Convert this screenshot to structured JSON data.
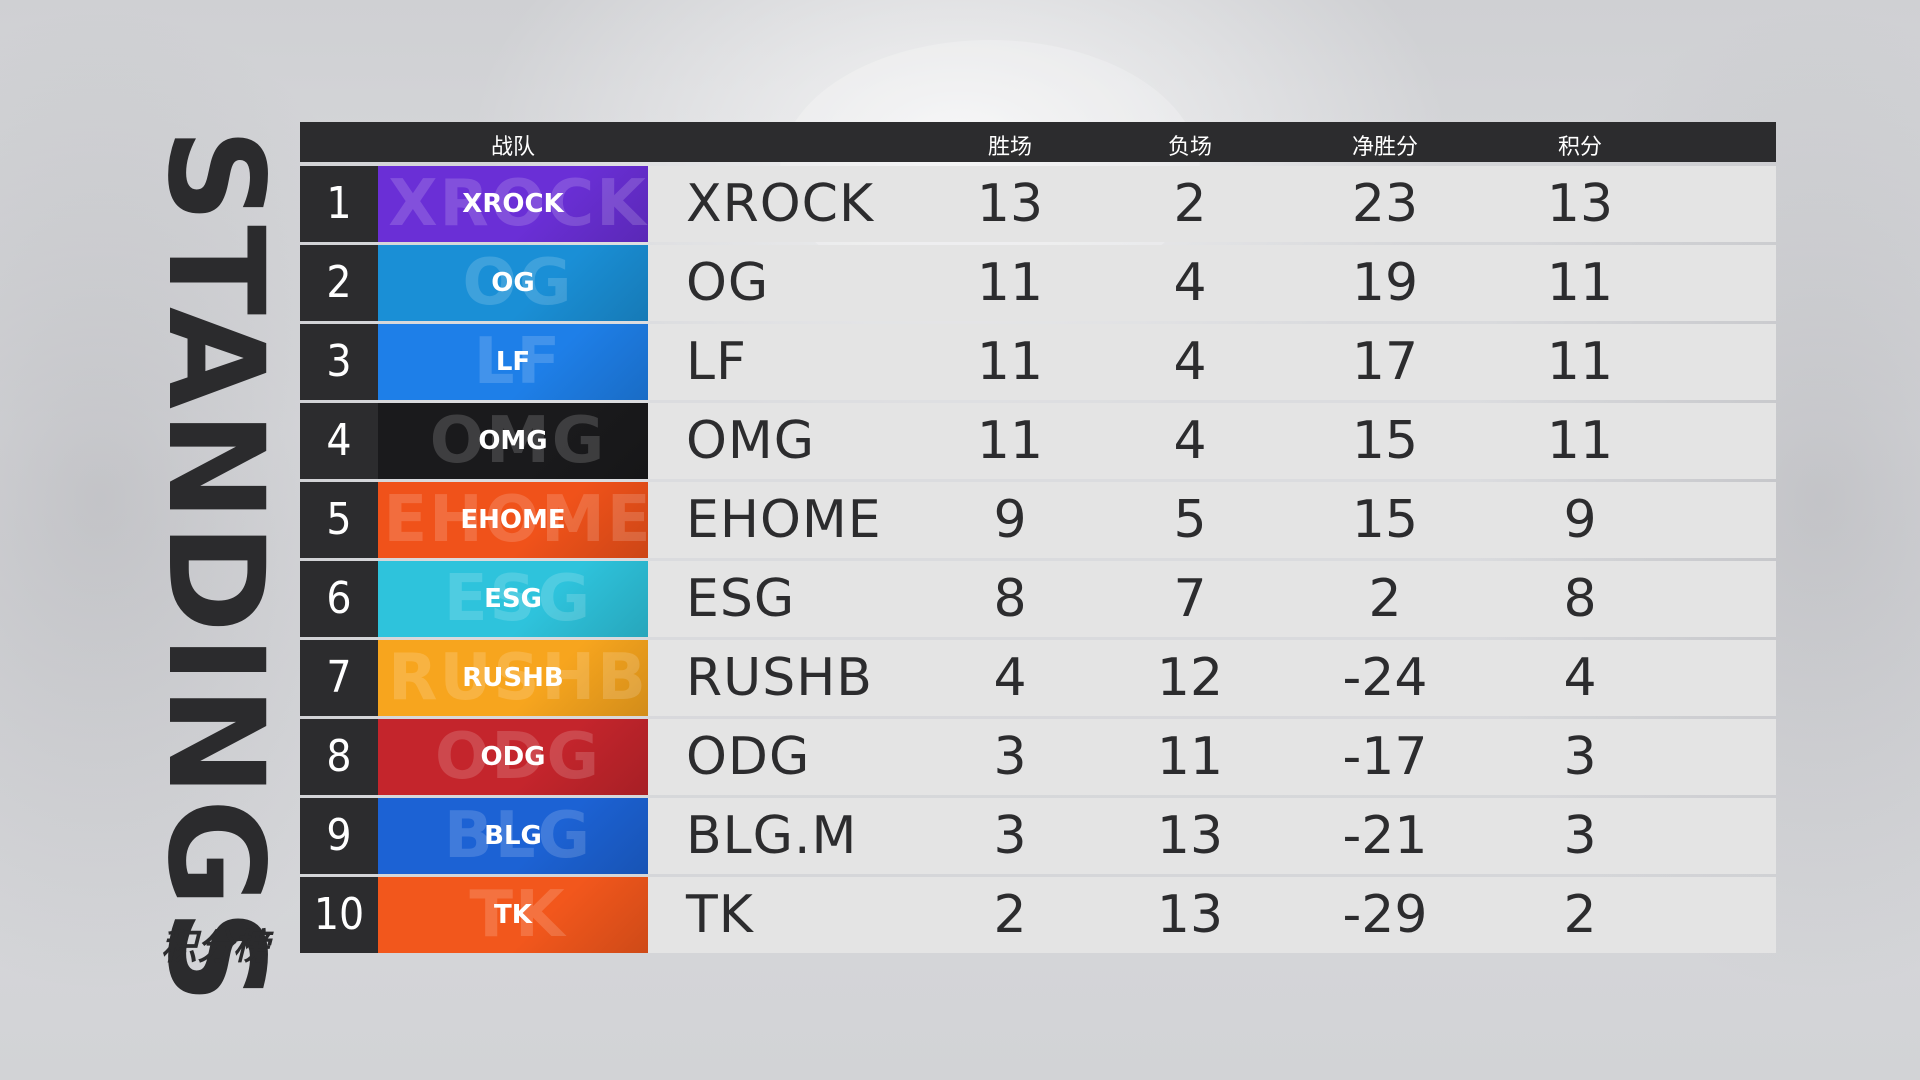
{
  "title": {
    "en": "STANDINGS",
    "cn": "积分榜"
  },
  "headers": {
    "team": "战队",
    "wins": "胜场",
    "losses": "负场",
    "diff": "净胜分",
    "points": "积分"
  },
  "rows": [
    {
      "rank": "1",
      "team": "XROCK",
      "logo_text": "XROCK",
      "color": "#6a2fd6",
      "wins": "13",
      "losses": "2",
      "diff": "23",
      "points": "13"
    },
    {
      "rank": "2",
      "team": "OG",
      "logo_text": "OG",
      "color": "#1a8fd6",
      "wins": "11",
      "losses": "4",
      "diff": "19",
      "points": "11"
    },
    {
      "rank": "3",
      "team": "LF",
      "logo_text": "LF",
      "color": "#1e7fe8",
      "wins": "11",
      "losses": "4",
      "diff": "17",
      "points": "11"
    },
    {
      "rank": "4",
      "team": "OMG",
      "logo_text": "OMG",
      "color": "#1a1a1c",
      "wins": "11",
      "losses": "4",
      "diff": "15",
      "points": "11"
    },
    {
      "rank": "5",
      "team": "EHOME",
      "logo_text": "EHOME",
      "color": "#f0521a",
      "wins": "9",
      "losses": "5",
      "diff": "15",
      "points": "9"
    },
    {
      "rank": "6",
      "team": "ESG",
      "logo_text": "ESG",
      "color": "#2ec3dc",
      "wins": "8",
      "losses": "7",
      "diff": "2",
      "points": "8"
    },
    {
      "rank": "7",
      "team": "RUSHB",
      "logo_text": "RUSHB",
      "color": "#f7a51e",
      "wins": "4",
      "losses": "12",
      "diff": "-24",
      "points": "4"
    },
    {
      "rank": "8",
      "team": "ODG",
      "logo_text": "ODG",
      "color": "#c4252c",
      "wins": "3",
      "losses": "11",
      "diff": "-17",
      "points": "3"
    },
    {
      "rank": "9",
      "team": "BLG.M",
      "logo_text": "BLG",
      "color": "#1c62d4",
      "wins": "3",
      "losses": "13",
      "diff": "-21",
      "points": "3"
    },
    {
      "rank": "10",
      "team": "TK",
      "logo_text": "TK",
      "color": "#f2571c",
      "wins": "2",
      "losses": "13",
      "diff": "-29",
      "points": "2"
    }
  ]
}
